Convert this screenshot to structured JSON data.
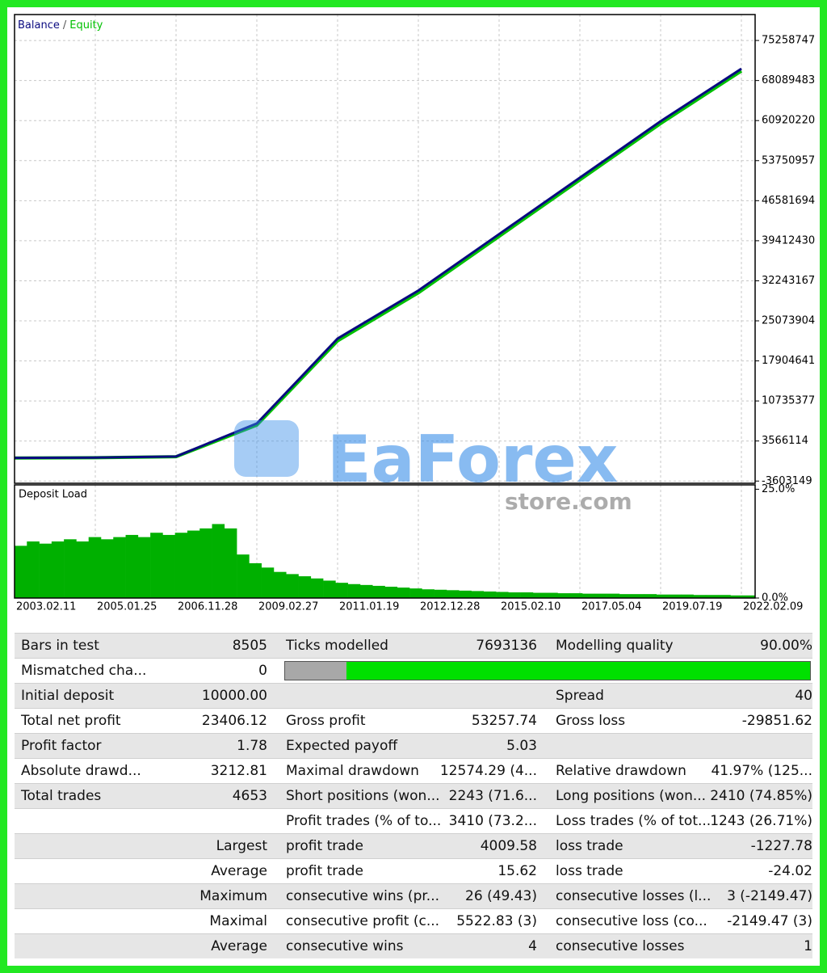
{
  "chart_data": [
    {
      "type": "line",
      "legend_separator": "/",
      "categories": [
        "2003.02.11",
        "2005.01.25",
        "2006.11.28",
        "2009.02.27",
        "2011.01.19",
        "2012.12.28",
        "2015.02.10",
        "2017.05.04",
        "2019.07.19",
        "2022.02.09"
      ],
      "series": [
        {
          "name": "Balance",
          "color": "#0a0a80",
          "values": [
            540000,
            600000,
            800000,
            6700000,
            21900000,
            30500000,
            40600000,
            50700000,
            60800000,
            70200000
          ]
        },
        {
          "name": "Equity",
          "color": "#00c000",
          "values": [
            520000,
            580000,
            760000,
            6400000,
            21500000,
            30100000,
            40200000,
            50300000,
            60400000,
            69800000
          ]
        }
      ],
      "ylim": [
        -4000000,
        79900000
      ],
      "yticks": [
        75258747,
        68089483,
        60920220,
        53750957,
        46581694,
        39412430,
        32243167,
        25073904,
        17904641,
        10735377,
        3566114,
        -3603149
      ],
      "grid": true
    },
    {
      "type": "bar",
      "title": "Deposit Load",
      "color": "#00b000",
      "values": [
        12,
        13,
        12.5,
        13,
        13.5,
        13,
        14,
        13.5,
        14,
        14.5,
        14,
        15,
        14.5,
        15,
        15.5,
        16,
        17,
        16,
        10,
        8,
        7,
        6,
        5.5,
        5,
        4.5,
        4,
        3.5,
        3.2,
        3,
        2.8,
        2.6,
        2.4,
        2.2,
        2,
        1.9,
        1.8,
        1.7,
        1.6,
        1.5,
        1.4,
        1.3,
        1.3,
        1.2,
        1.2,
        1.1,
        1.1,
        1.0,
        1.0,
        1.0,
        0.9,
        0.9,
        0.9,
        0.8,
        0.8,
        0.8,
        0.7,
        0.7,
        0.7,
        0.6,
        0.6
      ],
      "ylim": [
        0,
        26
      ],
      "yticks": [
        {
          "value": 25,
          "label": "25.0%"
        },
        {
          "value": 0,
          "label": "0.0%"
        }
      ],
      "grid": true
    }
  ],
  "watermark": {
    "brand": "EaForex",
    "site": "store.com"
  },
  "table": {
    "rows": [
      [
        "Bars in test",
        "8505",
        "Ticks modelled",
        "7693136",
        "Modelling quality",
        "90.00%"
      ],
      [
        "Mismatched cha...",
        "0"
      ],
      [
        "Initial deposit",
        "10000.00",
        null,
        null,
        "Spread",
        "40"
      ],
      [
        "Total net profit",
        "23406.12",
        "Gross profit",
        "53257.74",
        "Gross loss",
        "-29851.62"
      ],
      [
        "Profit factor",
        "1.78",
        "Expected payoff",
        "5.03",
        null,
        null
      ],
      [
        "Absolute drawd...",
        "3212.81",
        "Maximal drawdown",
        "12574.29 (4...",
        "Relative drawdown",
        "41.97% (125..."
      ],
      [
        "Total trades",
        "4653",
        "Short positions (won...",
        "2243 (71.6...",
        "Long positions (won...",
        "2410 (74.85%)"
      ],
      [
        null,
        null,
        "Profit trades (% of to...",
        "3410 (73.2...",
        "Loss trades (% of tot...",
        "1243 (26.71%)"
      ],
      [
        null,
        "Largest",
        "profit trade",
        "4009.58",
        "loss trade",
        "-1227.78"
      ],
      [
        null,
        "Average",
        "profit trade",
        "15.62",
        "loss trade",
        "-24.02"
      ],
      [
        null,
        "Maximum",
        "consecutive wins (pr...",
        "26 (49.43)",
        "consecutive losses (l...",
        "3 (-2149.47)"
      ],
      [
        null,
        "Maximal",
        "consecutive profit (c...",
        "5522.83 (3)",
        "consecutive loss (co...",
        "-2149.47 (3)"
      ],
      [
        null,
        "Average",
        "consecutive wins",
        "4",
        "consecutive losses",
        "1"
      ]
    ]
  }
}
